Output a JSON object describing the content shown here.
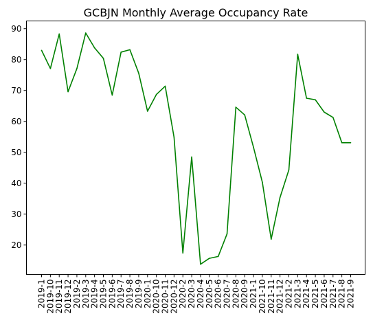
{
  "chart_data": {
    "type": "line",
    "title": "GCBJN Monthly Average Occupancy Rate",
    "xlabel": "",
    "ylabel": "",
    "grid": false,
    "ylim": [
      10.5,
      92.5
    ],
    "yticks": [
      20,
      30,
      40,
      50,
      60,
      70,
      80,
      90
    ],
    "categories": [
      "2019-1",
      "2019-10",
      "2019-11",
      "2019-12",
      "2019-2",
      "2019-3",
      "2019-4",
      "2019-5",
      "2019-6",
      "2019-7",
      "2019-8",
      "2019-9",
      "2020-1",
      "2020-10",
      "2020-11",
      "2020-12",
      "2020-2",
      "2020-3",
      "2020-4",
      "2020-5",
      "2020-6",
      "2020-7",
      "2020-8",
      "2020-9",
      "2021-1",
      "2021-10",
      "2021-11",
      "2021-12",
      "2021-2",
      "2021-3",
      "2021-4",
      "2021-5",
      "2021-6",
      "2021-7",
      "2021-8",
      "2021-9"
    ],
    "series": [
      {
        "color": "#008000",
        "values": [
          83.0,
          77.1,
          88.3,
          69.6,
          77.1,
          88.6,
          83.8,
          80.4,
          68.5,
          82.4,
          83.2,
          75.6,
          63.3,
          68.7,
          71.4,
          54.9,
          17.4,
          48.5,
          13.8,
          15.7,
          16.3,
          23.6,
          64.6,
          62.1,
          51.6,
          40.3,
          21.9,
          35.4,
          44.3,
          81.7,
          67.5,
          67.0,
          63.0,
          61.3,
          53.1,
          53.1
        ]
      }
    ]
  }
}
